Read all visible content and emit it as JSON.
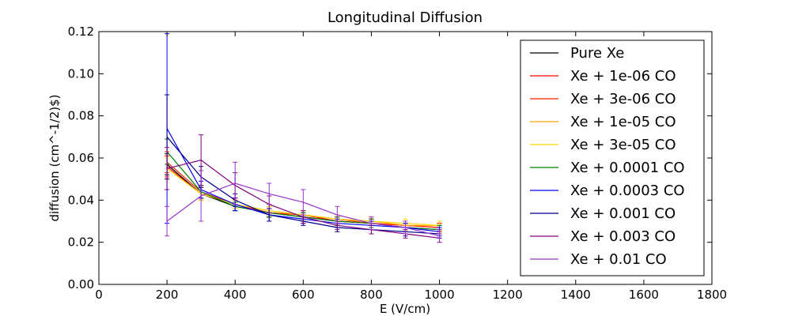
{
  "chart_data": {
    "type": "line",
    "title": "Longitudinal Diffusion",
    "xlabel": "E (V/cm)",
    "ylabel": "diffusion (cm^-1/2)$)",
    "xlim": [
      0,
      1800
    ],
    "ylim": [
      0,
      0.12
    ],
    "x_ticks": [
      "0",
      "200",
      "400",
      "600",
      "800",
      "1000",
      "1200",
      "1400",
      "1600",
      "1800"
    ],
    "y_ticks": [
      "0.00",
      "0.02",
      "0.04",
      "0.06",
      "0.08",
      "0.10",
      "0.12"
    ],
    "grid": false,
    "legend_position": "top-right",
    "x": [
      200,
      300,
      400,
      500,
      600,
      700,
      800,
      900,
      1000
    ],
    "series": [
      {
        "name": "Pure Xe",
        "color": "#000000",
        "values": [
          0.057,
          0.043,
          0.037,
          0.034,
          0.032,
          0.03,
          0.029,
          0.027,
          0.026
        ],
        "errors": [
          0.005,
          0.003,
          0.002,
          0.002,
          0.002,
          0.002,
          0.002,
          0.002,
          0.002
        ]
      },
      {
        "name": "Xe + 1e-06 CO",
        "color": "#ff0000",
        "values": [
          0.056,
          0.043,
          0.038,
          0.034,
          0.033,
          0.03,
          0.029,
          0.028,
          0.027
        ],
        "errors": [
          0.005,
          0.003,
          0.002,
          0.002,
          0.002,
          0.002,
          0.002,
          0.002,
          0.002
        ]
      },
      {
        "name": "Xe + 3e-06 CO",
        "color": "#ff2200",
        "values": [
          0.058,
          0.044,
          0.038,
          0.034,
          0.033,
          0.031,
          0.029,
          0.028,
          0.027
        ],
        "errors": [
          0.005,
          0.003,
          0.002,
          0.002,
          0.002,
          0.002,
          0.002,
          0.002,
          0.002
        ]
      },
      {
        "name": "Xe + 1e-05 CO",
        "color": "#ffa500",
        "values": [
          0.055,
          0.043,
          0.038,
          0.035,
          0.033,
          0.031,
          0.03,
          0.028,
          0.028
        ],
        "errors": [
          0.005,
          0.003,
          0.002,
          0.002,
          0.002,
          0.002,
          0.002,
          0.002,
          0.002
        ]
      },
      {
        "name": "Xe + 3e-05 CO",
        "color": "#ffd700",
        "values": [
          0.055,
          0.043,
          0.038,
          0.035,
          0.033,
          0.031,
          0.03,
          0.029,
          0.028
        ],
        "errors": [
          0.005,
          0.003,
          0.002,
          0.002,
          0.002,
          0.002,
          0.002,
          0.002,
          0.002
        ]
      },
      {
        "name": "Xe + 0.0001 CO",
        "color": "#008000",
        "values": [
          0.063,
          0.044,
          0.037,
          0.034,
          0.032,
          0.03,
          0.029,
          0.027,
          0.026
        ],
        "errors": [
          0.006,
          0.003,
          0.002,
          0.002,
          0.002,
          0.002,
          0.002,
          0.002,
          0.002
        ]
      },
      {
        "name": "Xe + 0.0003 CO",
        "color": "#0000ff",
        "values": [
          0.074,
          0.045,
          0.038,
          0.033,
          0.031,
          0.029,
          0.028,
          0.027,
          0.025
        ],
        "errors": [
          0.045,
          0.004,
          0.003,
          0.003,
          0.002,
          0.002,
          0.002,
          0.002,
          0.002
        ]
      },
      {
        "name": "Xe + 0.001 CO",
        "color": "#00008b",
        "values": [
          0.07,
          0.051,
          0.04,
          0.033,
          0.03,
          0.027,
          0.026,
          0.025,
          0.024
        ],
        "errors": [
          0.02,
          0.005,
          0.003,
          0.003,
          0.002,
          0.002,
          0.002,
          0.002,
          0.002
        ]
      },
      {
        "name": "Xe + 0.003 CO",
        "color": "#800080",
        "values": [
          0.055,
          0.059,
          0.047,
          0.038,
          0.032,
          0.028,
          0.026,
          0.024,
          0.022
        ],
        "errors": [
          0.01,
          0.012,
          0.006,
          0.004,
          0.003,
          0.002,
          0.002,
          0.002,
          0.002
        ]
      },
      {
        "name": "Xe + 0.01 CO",
        "color": "#9932cc",
        "values": [
          0.03,
          0.042,
          0.048,
          0.043,
          0.039,
          0.033,
          0.029,
          0.027,
          0.023
        ],
        "errors": [
          0.007,
          0.012,
          0.01,
          0.005,
          0.006,
          0.004,
          0.003,
          0.003,
          0.003
        ]
      }
    ]
  }
}
